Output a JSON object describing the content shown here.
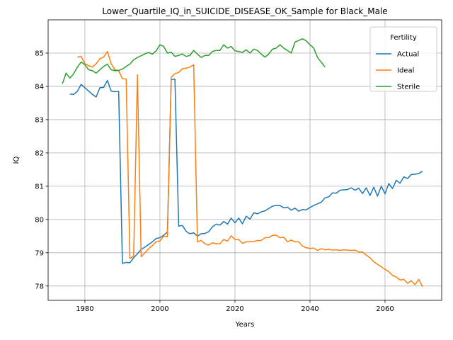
{
  "chart_data": {
    "type": "line",
    "title": "Lower_Quartile_IQ_in_SUICIDE_DISEASE_OK_Sample for Black_Male",
    "x_label": "Years",
    "y_label": "IQ",
    "legend_title": "Fertility",
    "legend_position": "upper right",
    "grid": true,
    "xlim": [
      1970.2,
      2075.1
    ],
    "ylim": [
      77.57,
      86.0
    ],
    "xticks": [
      1980,
      2000,
      2020,
      2040,
      2060
    ],
    "yticks": [
      78,
      79,
      80,
      81,
      82,
      83,
      84,
      85
    ],
    "x": [
      1974,
      1975,
      1976,
      1977,
      1978,
      1979,
      1980,
      1981,
      1982,
      1983,
      1984,
      1985,
      1986,
      1987,
      1988,
      1989,
      1990,
      1991,
      1992,
      1993,
      1994,
      1995,
      1996,
      1997,
      1998,
      1999,
      2000,
      2001,
      2002,
      2003,
      2004,
      2005,
      2006,
      2007,
      2008,
      2009,
      2010,
      2011,
      2012,
      2013,
      2014,
      2015,
      2016,
      2017,
      2018,
      2019,
      2020,
      2021,
      2022,
      2023,
      2024,
      2025,
      2026,
      2027,
      2028,
      2029,
      2030,
      2031,
      2032,
      2033,
      2034,
      2035,
      2036,
      2037,
      2038,
      2039,
      2040,
      2041,
      2042,
      2043,
      2044,
      2045,
      2046,
      2047,
      2048,
      2049,
      2050,
      2051,
      2052,
      2053,
      2054,
      2055,
      2056,
      2057,
      2058,
      2059,
      2060,
      2061,
      2062,
      2063,
      2064,
      2065,
      2066,
      2067,
      2068,
      2069,
      2070
    ],
    "series": [
      {
        "name": "Actual",
        "color": "#1f77b4",
        "values": [
          null,
          null,
          83.77,
          83.76,
          83.85,
          84.06,
          83.96,
          83.86,
          83.76,
          83.68,
          83.96,
          83.97,
          84.18,
          83.86,
          83.84,
          83.85,
          78.68,
          78.71,
          78.7,
          78.85,
          78.97,
          79.1,
          79.17,
          79.25,
          79.33,
          79.43,
          79.45,
          79.53,
          79.62,
          84.2,
          84.22,
          79.8,
          79.82,
          79.64,
          79.57,
          79.6,
          79.5,
          79.57,
          79.58,
          79.63,
          79.78,
          79.86,
          79.83,
          79.94,
          79.86,
          80.04,
          79.9,
          80.04,
          79.87,
          80.1,
          80.01,
          80.2,
          80.17,
          80.23,
          80.26,
          80.33,
          80.4,
          80.42,
          80.42,
          80.35,
          80.37,
          80.28,
          80.34,
          80.25,
          80.3,
          80.29,
          80.36,
          80.42,
          80.47,
          80.52,
          80.65,
          80.68,
          80.8,
          80.79,
          80.88,
          80.89,
          80.9,
          80.95,
          80.88,
          80.94,
          80.78,
          80.95,
          80.72,
          80.97,
          80.7,
          81.0,
          80.77,
          81.08,
          80.93,
          81.18,
          81.09,
          81.28,
          81.23,
          81.35,
          81.36,
          81.38,
          81.45
        ]
      },
      {
        "name": "Ideal",
        "color": "#ff7f0e",
        "values": [
          null,
          null,
          null,
          null,
          84.88,
          84.9,
          84.68,
          84.62,
          84.58,
          84.68,
          84.83,
          84.88,
          85.05,
          84.68,
          84.5,
          84.47,
          84.23,
          84.22,
          78.83,
          78.9,
          84.35,
          78.88,
          79.0,
          79.12,
          79.22,
          79.33,
          79.35,
          79.5,
          79.48,
          84.28,
          84.38,
          84.42,
          84.53,
          84.55,
          84.58,
          84.65,
          79.33,
          79.37,
          79.27,
          79.23,
          79.3,
          79.27,
          79.27,
          79.4,
          79.35,
          79.51,
          79.4,
          79.4,
          79.28,
          79.33,
          79.33,
          79.34,
          79.37,
          79.37,
          79.45,
          79.46,
          79.52,
          79.53,
          79.45,
          79.47,
          79.33,
          79.38,
          79.33,
          79.33,
          79.2,
          79.15,
          79.13,
          79.14,
          79.07,
          79.12,
          79.09,
          79.1,
          79.08,
          79.09,
          79.07,
          79.09,
          79.08,
          79.07,
          79.08,
          79.02,
          79.02,
          78.93,
          78.85,
          78.73,
          78.65,
          78.58,
          78.5,
          78.43,
          78.32,
          78.27,
          78.18,
          78.2,
          78.08,
          78.16,
          78.04,
          78.2,
          77.98
        ]
      },
      {
        "name": "Sterile",
        "color": "#2ca02c",
        "values": [
          84.08,
          84.4,
          84.25,
          84.38,
          84.58,
          84.73,
          84.65,
          84.5,
          84.47,
          84.4,
          84.5,
          84.6,
          84.67,
          84.5,
          84.47,
          84.48,
          84.52,
          84.6,
          84.67,
          84.8,
          84.87,
          84.92,
          84.98,
          85.02,
          84.97,
          85.07,
          85.25,
          85.2,
          85.0,
          85.03,
          84.9,
          84.93,
          84.97,
          84.9,
          84.93,
          85.08,
          84.97,
          84.87,
          84.93,
          84.93,
          85.05,
          85.08,
          85.08,
          85.25,
          85.15,
          85.2,
          85.07,
          85.05,
          85.02,
          85.1,
          85.0,
          85.12,
          85.08,
          84.97,
          84.88,
          84.97,
          85.12,
          85.15,
          85.25,
          85.15,
          85.08,
          85.0,
          85.33,
          85.38,
          85.43,
          85.37,
          85.25,
          85.15,
          84.87,
          84.73,
          84.58,
          null,
          null,
          null,
          null,
          null,
          null,
          null,
          null,
          null,
          null,
          null,
          null,
          null,
          null,
          null,
          null,
          null,
          null,
          null,
          null,
          null,
          null,
          null,
          null,
          null,
          null
        ]
      }
    ]
  }
}
